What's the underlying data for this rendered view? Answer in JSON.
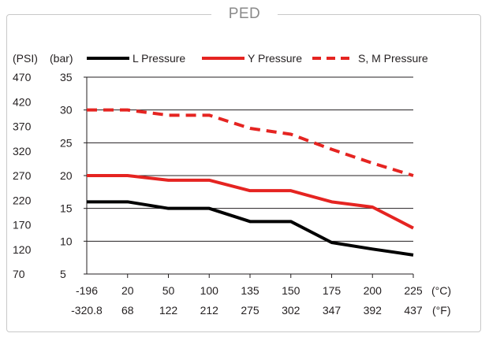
{
  "frame_title": "PED",
  "chart_data": {
    "type": "line",
    "title": "",
    "y_unit_label": "(bar)",
    "y2_unit_label": "(PSI)",
    "x_unit_label": "(°C)",
    "x2_unit_label": "(°F)",
    "categories": [
      "-196",
      "20",
      "50",
      "100",
      "135",
      "150",
      "175",
      "200",
      "225"
    ],
    "categories_f": [
      "-320.8",
      "68",
      "122",
      "212",
      "275",
      "302",
      "347",
      "392",
      "437"
    ],
    "y_ticks": [
      "5",
      "10",
      "15",
      "20",
      "25",
      "30",
      "35"
    ],
    "y2_ticks": [
      "70",
      "120",
      "170",
      "220",
      "270",
      "320",
      "370",
      "420",
      "470"
    ],
    "ylim": [
      5,
      35
    ],
    "psi_lim": [
      70,
      470
    ],
    "grid": true,
    "legend_position": "top",
    "series": [
      {
        "name": "L Pressure",
        "color": "#000000",
        "dash": "solid",
        "values": [
          16,
          16,
          15,
          15,
          13,
          13,
          9.8,
          8.8,
          7.9
        ]
      },
      {
        "name": "Y Pressure",
        "color": "#e52421",
        "dash": "solid",
        "values": [
          20,
          20,
          19.3,
          19.3,
          17.7,
          17.7,
          16,
          15.2,
          12
        ]
      },
      {
        "name": "S, M Pressure",
        "color": "#e52421",
        "dash": "dashed",
        "values": [
          30,
          30,
          29.2,
          29.2,
          27.2,
          26.3,
          24,
          21.9,
          20
        ]
      }
    ]
  }
}
